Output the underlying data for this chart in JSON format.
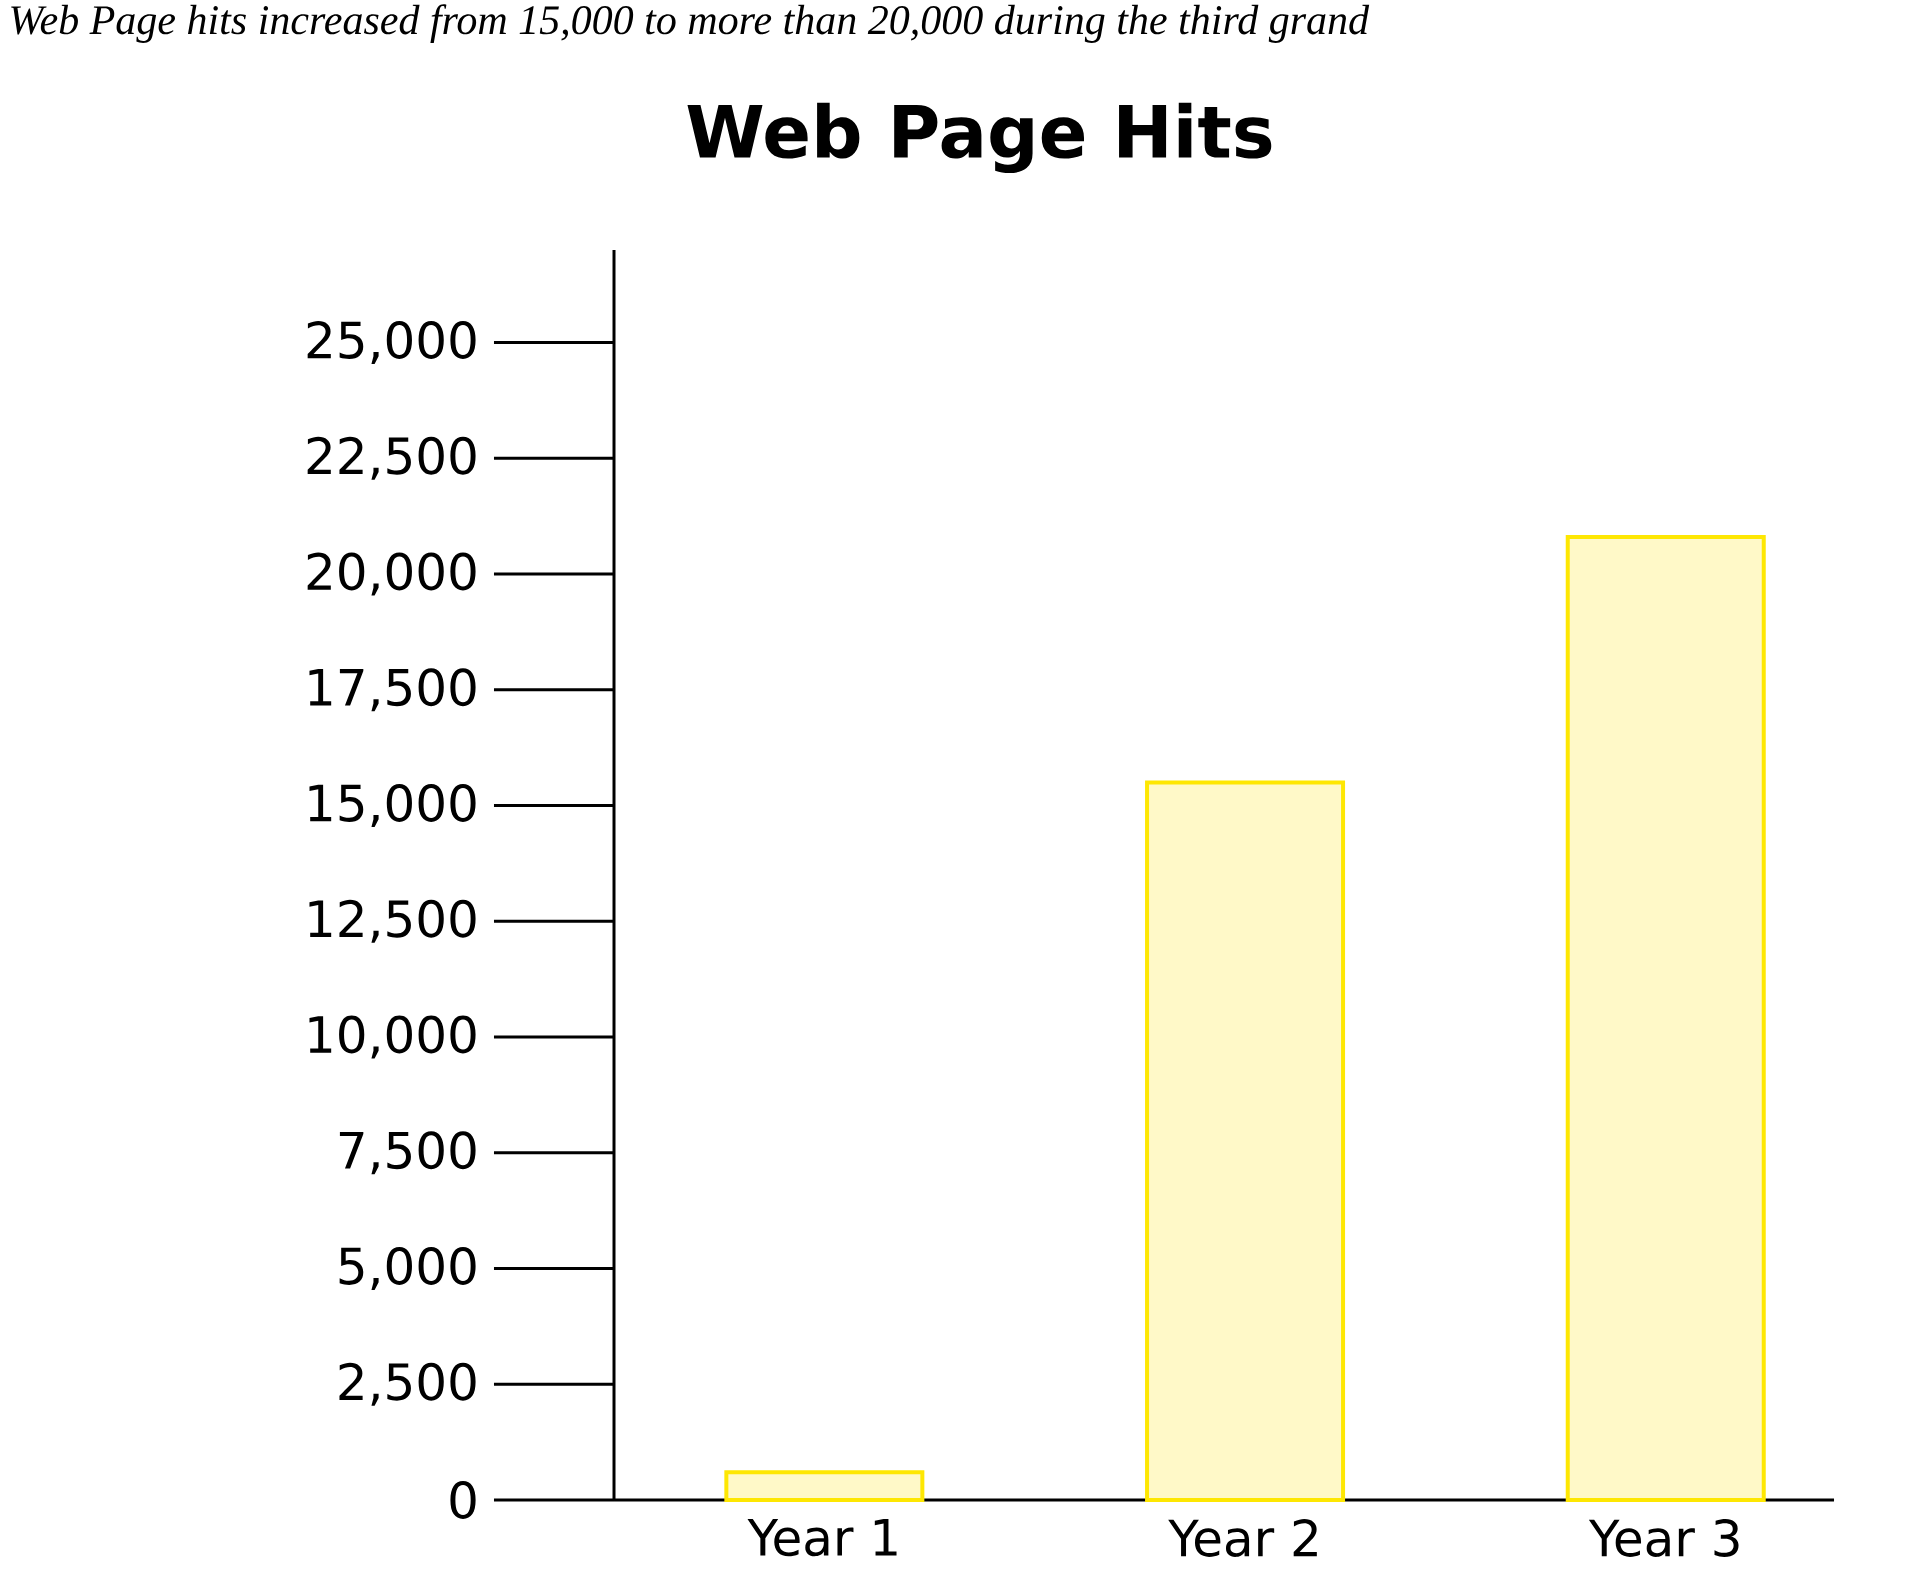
{
  "chart_data": {
    "type": "bar",
    "title": "Web Page Hits",
    "annotations": [
      "Web Page hits increased from 15,000 to more than 20,000 during the third grand"
    ],
    "categories": [
      "Year 1",
      "Year 2",
      "Year 3"
    ],
    "values": [
      600,
      15500,
      20800
    ],
    "color": "#fff9c8",
    "ylim": [
      0,
      27000
    ],
    "yticks": [
      {
        "value": 0,
        "label": "0"
      },
      {
        "value": 2500,
        "label": "2,500"
      },
      {
        "value": 5000,
        "label": "5,000"
      },
      {
        "value": 7500,
        "label": "7,500"
      },
      {
        "value": 10000,
        "label": "10,000"
      },
      {
        "value": 12500,
        "label": "12,500"
      },
      {
        "value": 15000,
        "label": "15,000"
      },
      {
        "value": 17500,
        "label": "17,500"
      },
      {
        "value": 20000,
        "label": "20,000"
      },
      {
        "value": 22500,
        "label": "22,500"
      },
      {
        "value": 25000,
        "label": "25,000"
      }
    ],
    "grid": false
  }
}
